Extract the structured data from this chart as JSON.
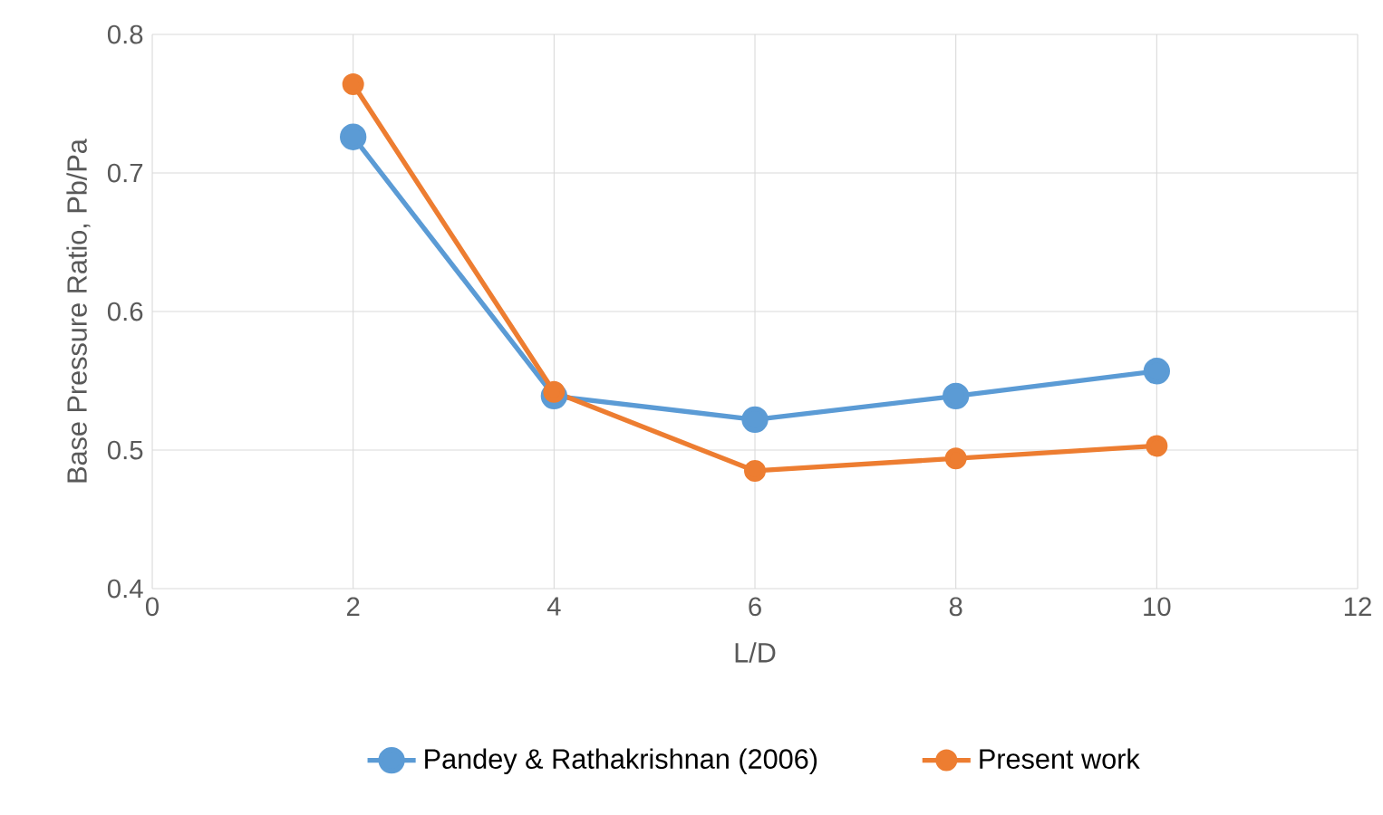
{
  "chart_data": {
    "type": "line",
    "xlabel": "L/D",
    "ylabel": "Base Pressure Ratio, Pb/Pa",
    "x": [
      2,
      4,
      6,
      8,
      10
    ],
    "series": [
      {
        "name": "Pandey & Rathakrishnan (2006)",
        "color": "#5b9bd5",
        "values": [
          0.726,
          0.539,
          0.522,
          0.539,
          0.557
        ]
      },
      {
        "name": "Present work",
        "color": "#ed7d31",
        "values": [
          0.764,
          0.542,
          0.485,
          0.494,
          0.503
        ]
      }
    ],
    "xlim": [
      0,
      12
    ],
    "ylim": [
      0.4,
      0.8
    ],
    "xticks": [
      0,
      2,
      4,
      6,
      8,
      10,
      12
    ],
    "yticks": [
      0.4,
      0.5,
      0.6,
      0.7,
      0.8
    ],
    "grid": true,
    "legend": "bottom",
    "marker": "circle",
    "line_style": "solid"
  }
}
